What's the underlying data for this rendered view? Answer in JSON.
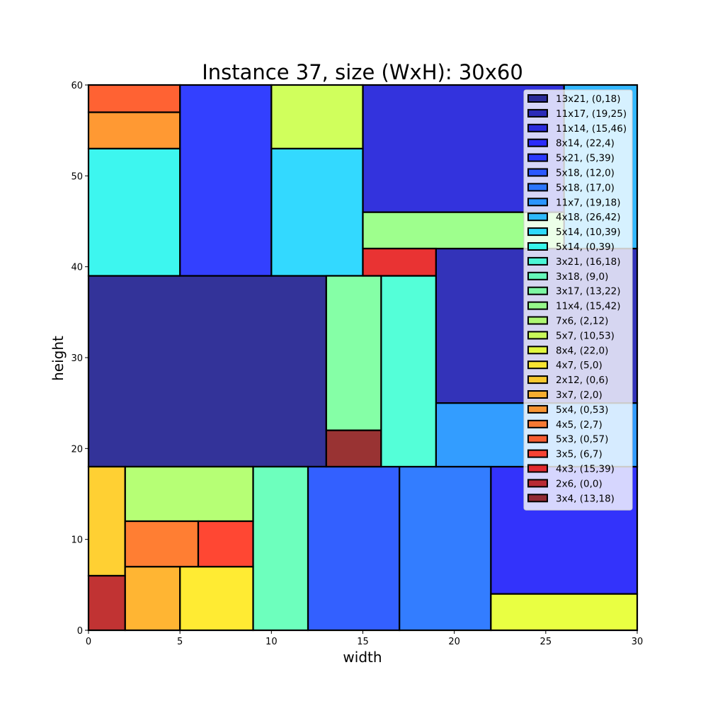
{
  "chart_data": {
    "type": "rectangle-packing",
    "title": "Instance 37, size (WxH): 30x60",
    "xlabel": "width",
    "ylabel": "height",
    "xlim": [
      0,
      30
    ],
    "ylim": [
      0,
      60
    ],
    "x_ticks": [
      0,
      5,
      10,
      15,
      20,
      25,
      30
    ],
    "y_ticks": [
      0,
      10,
      20,
      30,
      40,
      50,
      60
    ],
    "legend_position": "top-right",
    "rectangles": [
      {
        "label": "13x21, (0,18)",
        "w": 13,
        "h": 21,
        "x": 0,
        "y": 18,
        "color": "#000080"
      },
      {
        "label": "11x17, (19,25)",
        "w": 11,
        "h": 17,
        "x": 19,
        "y": 25,
        "color": "#0000a8"
      },
      {
        "label": "11x14, (15,46)",
        "w": 11,
        "h": 14,
        "x": 15,
        "y": 46,
        "color": "#0000d4"
      },
      {
        "label": "8x14, (22,4)",
        "w": 8,
        "h": 14,
        "x": 22,
        "y": 4,
        "color": "#0000fa"
      },
      {
        "label": "5x21, (5,39)",
        "w": 5,
        "h": 21,
        "x": 5,
        "y": 39,
        "color": "#0010ff"
      },
      {
        "label": "5x18, (12,0)",
        "w": 5,
        "h": 18,
        "x": 12,
        "y": 0,
        "color": "#0038ff"
      },
      {
        "label": "5x18, (17,0)",
        "w": 5,
        "h": 18,
        "x": 17,
        "y": 0,
        "color": "#005cff"
      },
      {
        "label": "11x7, (19,18)",
        "w": 11,
        "h": 7,
        "x": 19,
        "y": 18,
        "color": "#0084ff"
      },
      {
        "label": "4x18, (26,42)",
        "w": 4,
        "h": 18,
        "x": 26,
        "y": 42,
        "color": "#00a8ff"
      },
      {
        "label": "5x14, (10,39)",
        "w": 5,
        "h": 14,
        "x": 10,
        "y": 39,
        "color": "#00d0ff"
      },
      {
        "label": "5x14, (0,39)",
        "w": 5,
        "h": 14,
        "x": 0,
        "y": 39,
        "color": "#0cf4eb"
      },
      {
        "label": "3x21, (16,18)",
        "w": 3,
        "h": 21,
        "x": 16,
        "y": 18,
        "color": "#29ffce"
      },
      {
        "label": "3x18, (9,0)",
        "w": 3,
        "h": 18,
        "x": 9,
        "y": 0,
        "color": "#49ffad"
      },
      {
        "label": "3x17, (13,22)",
        "w": 3,
        "h": 17,
        "x": 13,
        "y": 22,
        "color": "#66ff90"
      },
      {
        "label": "11x4, (15,42)",
        "w": 11,
        "h": 4,
        "x": 15,
        "y": 42,
        "color": "#86ff70"
      },
      {
        "label": "7x6, (2,12)",
        "w": 7,
        "h": 6,
        "x": 2,
        "y": 12,
        "color": "#a4ff53"
      },
      {
        "label": "5x7, (10,53)",
        "w": 5,
        "h": 7,
        "x": 10,
        "y": 53,
        "color": "#c4ff33"
      },
      {
        "label": "8x4, (22,0)",
        "w": 8,
        "h": 4,
        "x": 22,
        "y": 0,
        "color": "#e4ff13"
      },
      {
        "label": "4x7, (5,0)",
        "w": 4,
        "h": 7,
        "x": 5,
        "y": 0,
        "color": "#ffe600"
      },
      {
        "label": "2x12, (0,6)",
        "w": 2,
        "h": 12,
        "x": 0,
        "y": 6,
        "color": "#ffc400"
      },
      {
        "label": "3x7, (2,0)",
        "w": 3,
        "h": 7,
        "x": 2,
        "y": 0,
        "color": "#ffa300"
      },
      {
        "label": "5x4, (0,53)",
        "w": 5,
        "h": 4,
        "x": 0,
        "y": 53,
        "color": "#ff8000"
      },
      {
        "label": "4x5, (2,7)",
        "w": 4,
        "h": 5,
        "x": 2,
        "y": 7,
        "color": "#ff5e00"
      },
      {
        "label": "5x3, (0,57)",
        "w": 5,
        "h": 3,
        "x": 0,
        "y": 57,
        "color": "#ff3b00"
      },
      {
        "label": "3x5, (6,7)",
        "w": 3,
        "h": 5,
        "x": 6,
        "y": 7,
        "color": "#ff1900"
      },
      {
        "label": "4x3, (15,39)",
        "w": 4,
        "h": 3,
        "x": 15,
        "y": 39,
        "color": "#e30000"
      },
      {
        "label": "2x6, (0,0)",
        "w": 2,
        "h": 6,
        "x": 0,
        "y": 0,
        "color": "#b20000"
      },
      {
        "label": "3x4, (13,18)",
        "w": 3,
        "h": 4,
        "x": 13,
        "y": 18,
        "color": "#800000"
      }
    ]
  }
}
